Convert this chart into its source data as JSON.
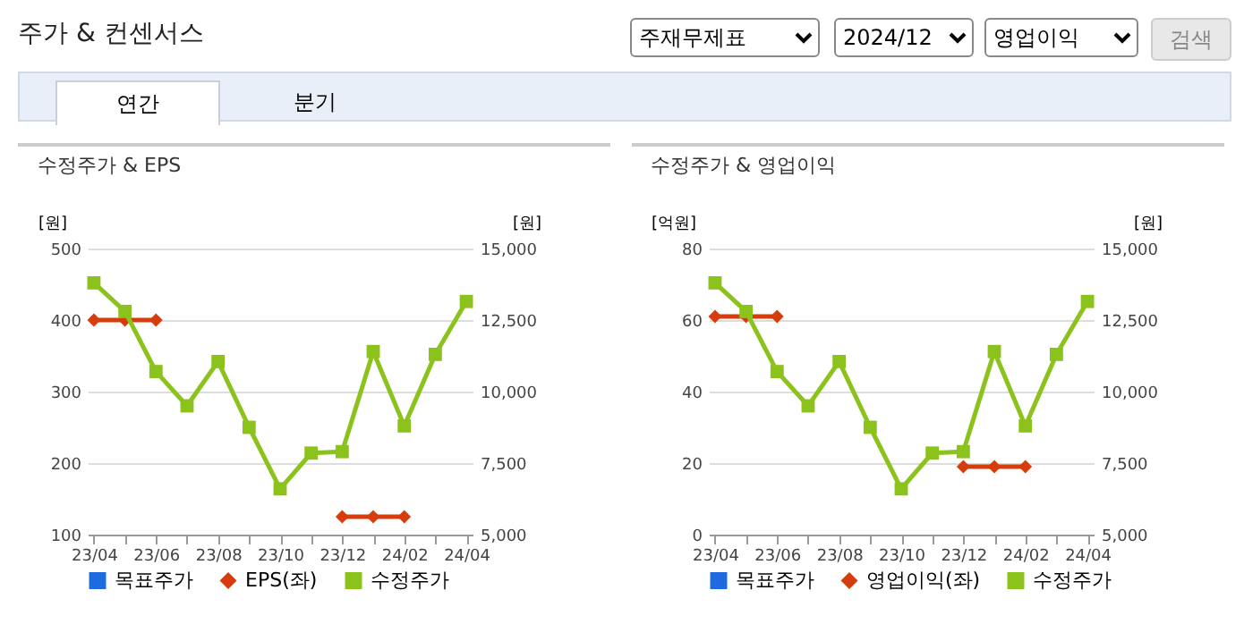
{
  "chart_data": [
    {
      "type": "other",
      "title": "주가 & 컨센서스",
      "annotations": [
        "주재무제표",
        "2024/12",
        "영업이익",
        "검색",
        "연간",
        "분기"
      ]
    },
    {
      "type": "line",
      "title": "수정주가 & EPS",
      "categories": [
        "23/04",
        null,
        "23/06",
        null,
        "23/08",
        null,
        "23/10",
        null,
        "23/12",
        null,
        "24/02",
        null,
        "24/04"
      ],
      "ylabel": "[원]",
      "y2label": "[원]",
      "ylim": [
        100,
        500
      ],
      "yticks": [
        100,
        200,
        300,
        400,
        500
      ],
      "y2lim": [
        5000,
        15000
      ],
      "y2ticks": [
        {
          "value": 5000,
          "label": "5,000"
        },
        {
          "value": 7500,
          "label": "7,500"
        },
        {
          "value": 10000,
          "label": "10,000"
        },
        {
          "value": 12500,
          "label": "12,500"
        },
        {
          "value": 15000,
          "label": "15,000"
        }
      ],
      "grid": "y",
      "legend": "bottom",
      "series": [
        {
          "name": "목표주가",
          "color": "#1e6be0",
          "marker": "square",
          "values": [
            null,
            null,
            null,
            null,
            null,
            null,
            null,
            null,
            null,
            null,
            null,
            null,
            null
          ]
        },
        {
          "name": "EPS(좌)",
          "color": "#d63c0c",
          "marker": "diamond",
          "values": [
            400,
            400,
            400,
            null,
            null,
            null,
            null,
            null,
            125,
            125,
            125,
            null,
            null
          ]
        },
        {
          "name": "수정주가",
          "color": "#8cc21c",
          "marker": "square",
          "axis": "y2",
          "values": [
            13800,
            12800,
            10700,
            9500,
            11050,
            8750,
            6600,
            7850,
            7900,
            11400,
            8800,
            11300,
            13150
          ]
        }
      ]
    },
    {
      "type": "line",
      "title": "수정주가 & 영업이익",
      "categories": [
        "23/04",
        null,
        "23/06",
        null,
        "23/08",
        null,
        "23/10",
        null,
        "23/12",
        null,
        "24/02",
        null,
        "24/04"
      ],
      "ylabel": "[억원]",
      "y2label": "[원]",
      "ylim": [
        0,
        80
      ],
      "yticks": [
        0,
        20,
        40,
        60,
        80
      ],
      "y2lim": [
        5000,
        15000
      ],
      "y2ticks": [
        {
          "value": 5000,
          "label": "5,000"
        },
        {
          "value": 7500,
          "label": "7,500"
        },
        {
          "value": 10000,
          "label": "10,000"
        },
        {
          "value": 12500,
          "label": "12,500"
        },
        {
          "value": 15000,
          "label": "15,000"
        }
      ],
      "grid": "y",
      "legend": "bottom",
      "series": [
        {
          "name": "목표주가",
          "color": "#1e6be0",
          "marker": "square",
          "values": [
            null,
            null,
            null,
            null,
            null,
            null,
            null,
            null,
            null,
            null,
            null,
            null,
            null
          ]
        },
        {
          "name": "영업이익(좌)",
          "color": "#d63c0c",
          "marker": "diamond",
          "values": [
            61,
            61,
            61,
            null,
            null,
            null,
            null,
            null,
            19,
            19,
            19,
            null,
            null
          ]
        },
        {
          "name": "수정주가",
          "color": "#8cc21c",
          "marker": "square",
          "axis": "y2",
          "values": [
            13800,
            12800,
            10700,
            9500,
            11050,
            8750,
            6600,
            7850,
            7900,
            11400,
            8800,
            11300,
            13150
          ]
        }
      ]
    }
  ]
}
